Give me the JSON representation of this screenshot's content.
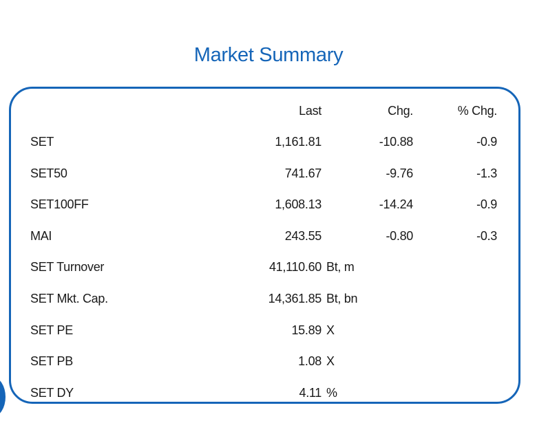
{
  "title": "Market Summary",
  "headers": {
    "last": "Last",
    "chg": "Chg.",
    "pct": "% Chg."
  },
  "indices": [
    {
      "name": "SET",
      "last": "1,161.81",
      "chg": "-10.88",
      "pct": "-0.9"
    },
    {
      "name": "SET50",
      "last": "741.67",
      "chg": "-9.76",
      "pct": "-1.3"
    },
    {
      "name": "SET100FF",
      "last": "1,608.13",
      "chg": "-14.24",
      "pct": "-0.9"
    },
    {
      "name": "MAI",
      "last": "243.55",
      "chg": "-0.80",
      "pct": "-0.3"
    }
  ],
  "stats": [
    {
      "name": "SET  Turnover",
      "value": "41,110.60",
      "unit": "Bt,  m"
    },
    {
      "name": "SET  Mkt. Cap.",
      "value": "14,361.85",
      "unit": "Bt,  bn"
    },
    {
      "name": "SET  PE",
      "value": "15.89",
      "unit": "X"
    },
    {
      "name": "SET  PB",
      "value": "1.08",
      "unit": "X"
    },
    {
      "name": "SET  DY",
      "value": "4.11",
      "unit": "%"
    }
  ],
  "colors": {
    "accent": "#1565b8",
    "text": "#1a1a1a"
  }
}
